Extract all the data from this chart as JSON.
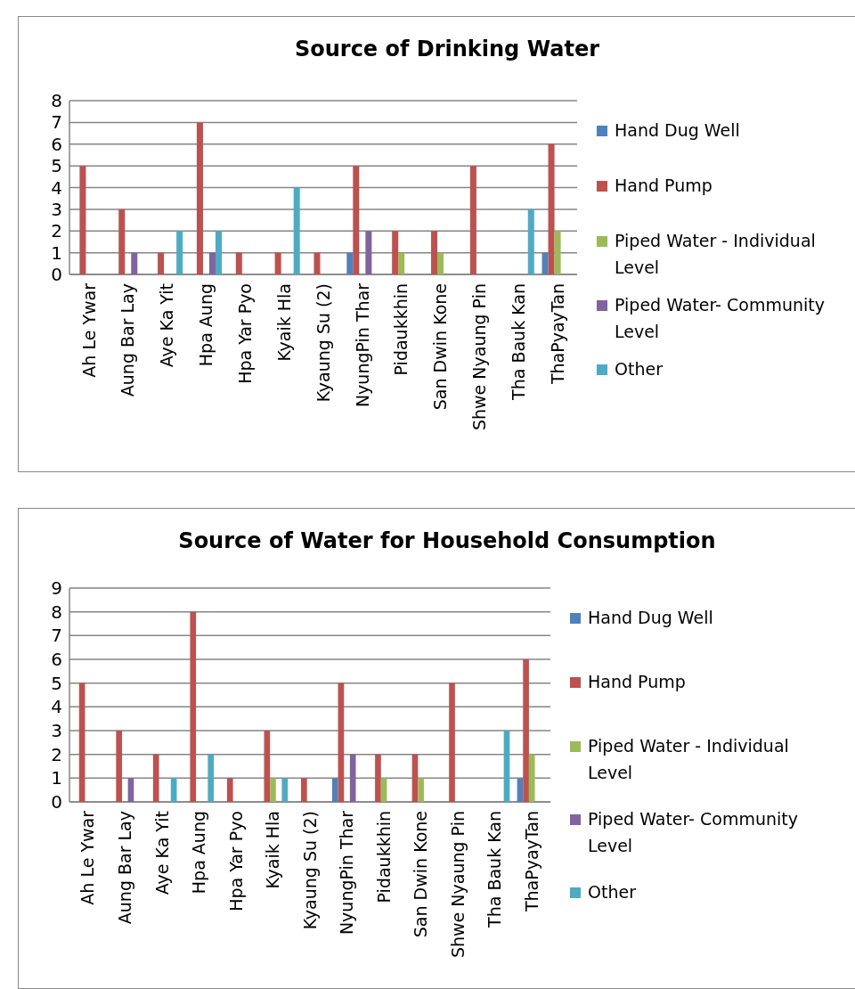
{
  "chart_data": [
    {
      "type": "bar",
      "title": "Source of Drinking Water",
      "categories": [
        "Ah Le Ywar",
        "Aung Bar Lay",
        "Aye Ka Yit",
        "Hpa Aung",
        "Hpa Yar Pyo",
        "Kyaik Hla",
        "Kyaung Su (2)",
        "NyungPin Thar",
        "Pidaukkhin",
        "San Dwin Kone",
        "Shwe Nyaung Pin",
        "Tha Bauk Kan",
        "ThaPyayTan"
      ],
      "series": [
        {
          "name": "Hand Dug Well",
          "color": "#4f81bd",
          "values": [
            null,
            null,
            null,
            null,
            null,
            null,
            null,
            1,
            null,
            null,
            null,
            null,
            1
          ]
        },
        {
          "name": "Hand Pump",
          "color": "#c0504d",
          "values": [
            5,
            3,
            1,
            7,
            1,
            1,
            1,
            5,
            2,
            2,
            5,
            null,
            6
          ]
        },
        {
          "name": "Piped Water - Individual Level",
          "color": "#9bbb59",
          "values": [
            null,
            null,
            null,
            null,
            null,
            null,
            null,
            null,
            1,
            1,
            null,
            null,
            2
          ]
        },
        {
          "name": "Piped Water- Community Level",
          "color": "#8064a2",
          "values": [
            null,
            1,
            null,
            1,
            null,
            null,
            null,
            2,
            null,
            null,
            null,
            null,
            null
          ]
        },
        {
          "name": "Other",
          "color": "#4bacc6",
          "values": [
            null,
            null,
            2,
            2,
            null,
            4,
            null,
            null,
            null,
            null,
            null,
            3,
            null
          ]
        }
      ],
      "ylim": [
        0,
        8
      ],
      "yticks": [
        0,
        1,
        2,
        3,
        4,
        5,
        6,
        7,
        8
      ],
      "grid": "y",
      "legend": "right"
    },
    {
      "type": "bar",
      "title": "Source of Water for Household Consumption",
      "categories": [
        "Ah Le Ywar",
        "Aung Bar Lay",
        "Aye Ka Yit",
        "Hpa Aung",
        "Hpa Yar Pyo",
        "Kyaik Hla",
        "Kyaung Su (2)",
        "NyungPin Thar",
        "Pidaukkhin",
        "San Dwin Kone",
        "Shwe Nyaung Pin",
        "Tha Bauk Kan",
        "ThaPyayTan"
      ],
      "series": [
        {
          "name": "Hand Dug Well",
          "color": "#4f81bd",
          "values": [
            null,
            null,
            null,
            null,
            null,
            null,
            null,
            1,
            null,
            null,
            null,
            null,
            1
          ]
        },
        {
          "name": "Hand Pump",
          "color": "#c0504d",
          "values": [
            5,
            3,
            2,
            8,
            1,
            3,
            1,
            5,
            2,
            2,
            5,
            null,
            6
          ]
        },
        {
          "name": "Piped Water - Individual Level",
          "color": "#9bbb59",
          "values": [
            null,
            null,
            null,
            null,
            null,
            1,
            null,
            null,
            1,
            1,
            null,
            null,
            2
          ]
        },
        {
          "name": "Piped Water- Community Level",
          "color": "#8064a2",
          "values": [
            null,
            1,
            null,
            null,
            null,
            null,
            null,
            2,
            null,
            null,
            null,
            null,
            null
          ]
        },
        {
          "name": "Other",
          "color": "#4bacc6",
          "values": [
            null,
            null,
            1,
            2,
            null,
            1,
            null,
            null,
            null,
            null,
            null,
            3,
            null
          ]
        }
      ],
      "ylim": [
        0,
        9
      ],
      "yticks": [
        0,
        1,
        2,
        3,
        4,
        5,
        6,
        7,
        8,
        9
      ],
      "grid": "y",
      "legend": "right"
    }
  ]
}
